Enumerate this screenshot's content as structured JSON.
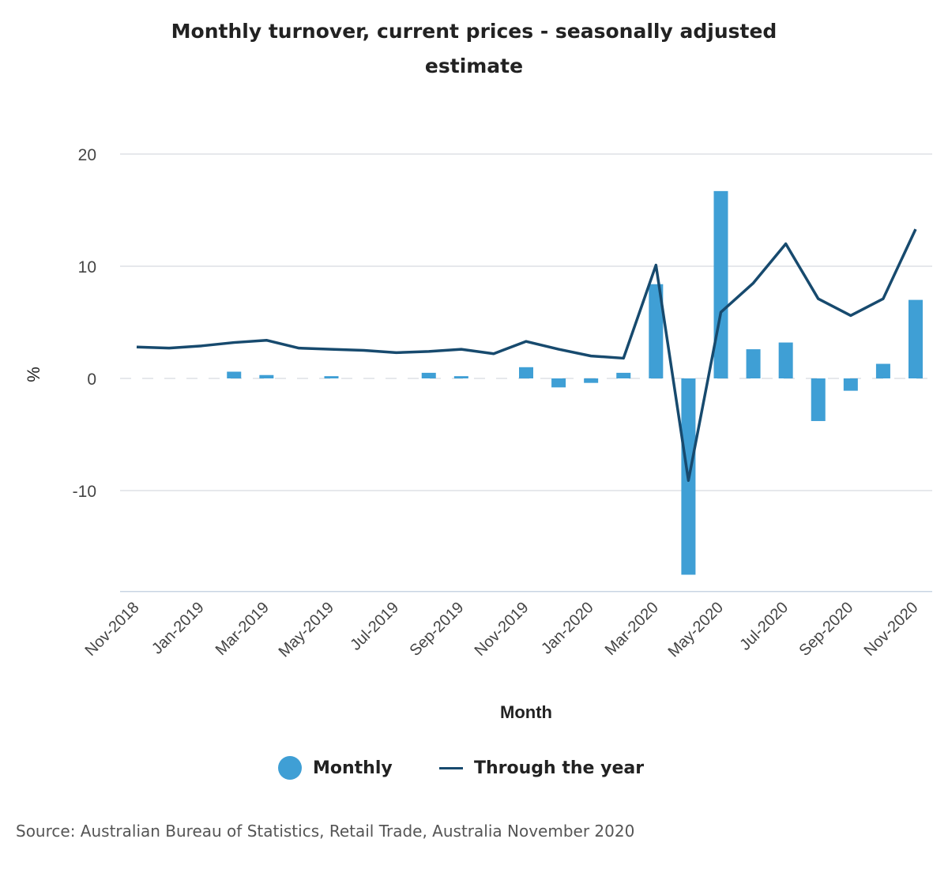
{
  "chart_data": {
    "type": "bar",
    "title_line1": "Monthly turnover, current prices - seasonally adjusted",
    "title_line2": "estimate",
    "xlabel": "Month",
    "ylabel": "%",
    "ylim": [
      -19,
      20
    ],
    "yticks": [
      20,
      10,
      0,
      -10
    ],
    "ytick_labels": [
      "20",
      "10",
      "0",
      "-10"
    ],
    "categories": [
      "Nov-2018",
      "Dec-2018",
      "Jan-2019",
      "Feb-2019",
      "Mar-2019",
      "Apr-2019",
      "May-2019",
      "Jun-2019",
      "Jul-2019",
      "Aug-2019",
      "Sep-2019",
      "Oct-2019",
      "Nov-2019",
      "Dec-2019",
      "Jan-2020",
      "Feb-2020",
      "Mar-2020",
      "Apr-2020",
      "May-2020",
      "Jun-2020",
      "Jul-2020",
      "Aug-2020",
      "Sep-2020",
      "Oct-2020",
      "Nov-2020"
    ],
    "xtick_labels": [
      "Nov-2018",
      "Jan-2019",
      "Mar-2019",
      "May-2019",
      "Jul-2019",
      "Sep-2019",
      "Nov-2019",
      "Jan-2020",
      "Mar-2020",
      "May-2020",
      "Jul-2020",
      "Sep-2020",
      "Nov-2020"
    ],
    "series": [
      {
        "name": "Monthly",
        "kind": "bar",
        "color": "#3f9fd5",
        "values": [
          0.0,
          0.0,
          0.0,
          0.6,
          0.3,
          0.0,
          0.2,
          0.0,
          0.0,
          0.5,
          0.2,
          0.0,
          1.0,
          -0.8,
          -0.4,
          0.5,
          8.4,
          -17.5,
          16.7,
          2.6,
          3.2,
          -3.8,
          -1.1,
          1.3,
          7.0
        ]
      },
      {
        "name": "Through the year",
        "kind": "line",
        "color": "#174a6e",
        "values": [
          2.8,
          2.7,
          2.9,
          3.2,
          3.4,
          2.7,
          2.6,
          2.5,
          2.3,
          2.4,
          2.6,
          2.2,
          3.3,
          2.6,
          2.0,
          1.8,
          10.1,
          -9.1,
          5.9,
          8.5,
          12.0,
          7.1,
          5.6,
          7.1,
          13.3
        ]
      }
    ],
    "legend": [
      "Monthly",
      "Through the year"
    ],
    "legend_position": "bottom",
    "source": "Source: Australian Bureau of Statistics, Retail Trade, Australia November 2020"
  }
}
